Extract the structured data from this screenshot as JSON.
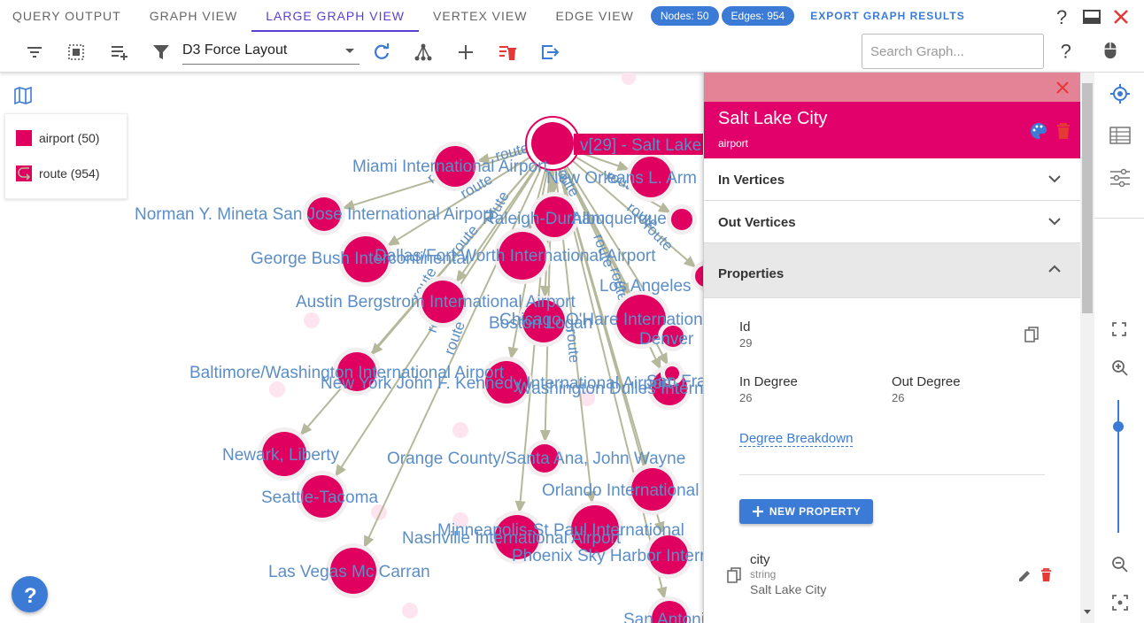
{
  "tabs": [
    {
      "label": "QUERY OUTPUT",
      "active": false
    },
    {
      "label": "GRAPH VIEW",
      "active": false
    },
    {
      "label": "LARGE GRAPH VIEW",
      "active": true
    },
    {
      "label": "VERTEX VIEW",
      "active": false
    },
    {
      "label": "EDGE VIEW",
      "active": false
    }
  ],
  "chips": {
    "nodes": "Nodes: 50",
    "edges": "Edges: 954"
  },
  "export_label": "EXPORT GRAPH RESULTS",
  "toolbar": {
    "layout_value": "D3 Force Layout",
    "search_placeholder": "Search Graph...",
    "icons": [
      "filter-list-icon",
      "select-all-icon",
      "playlist-add-icon",
      "funnel-icon",
      "refresh-icon",
      "tree-icon",
      "plus-icon",
      "delete-clear-icon",
      "export-icon",
      "help-icon",
      "mouse-icon"
    ]
  },
  "legend": {
    "items": [
      {
        "label": "airport (50)",
        "color": "#e0005f"
      },
      {
        "label": "route (954)",
        "color": "#e0005f"
      }
    ]
  },
  "graph": {
    "node_color": "#e0005f",
    "label_color": "#5b8ec6",
    "edge_color": "#b5b89a",
    "selected_label": "v[29] - Salt Lake",
    "edge_labels": [
      "route",
      "route",
      "route",
      "route",
      "route",
      "route",
      "route",
      "route",
      "route",
      "route",
      "route",
      "route",
      "route",
      "route",
      "route",
      "route"
    ],
    "node_labels": [
      "Miami International Airport",
      "New Orleans L. Arm",
      "Norman Y. Mineta San Jose International Airport",
      "Raleigh-Durham",
      "Albuquerque",
      "George Bush Intercontinental",
      "Dallas/Fort Worth International Airport",
      "Los Angeles",
      "Austin Bergstrom International Airport",
      "Chicago O'Hare International",
      "Boston Logan",
      "Denver",
      "Baltimore/Washington International Airport",
      "New York John F. Kennedy International Airport",
      "Washington Dulles International",
      "San Francisco",
      "Newark, Liberty",
      "Orange County/Santa Ana, John Wayne",
      "Seattle-Tacoma",
      "Orlando International",
      "Minneapolis-St Paul International",
      "Nashville International Airport",
      "Phoenix Sky Harbor International",
      "Las Vegas Mc Carran",
      "San Antonio"
    ]
  },
  "panel": {
    "title": "Salt Lake City",
    "subtitle": "airport",
    "sections": {
      "in": "In Vertices",
      "out": "Out Vertices",
      "props": "Properties"
    },
    "id_label": "Id",
    "id_value": "29",
    "in_degree_label": "In Degree",
    "in_degree_value": "26",
    "out_degree_label": "Out Degree",
    "out_degree_value": "26",
    "degree_breakdown": "Degree Breakdown",
    "new_property": "NEW PROPERTY",
    "property": {
      "name": "city",
      "type": "string",
      "value": "Salt Lake City"
    }
  }
}
